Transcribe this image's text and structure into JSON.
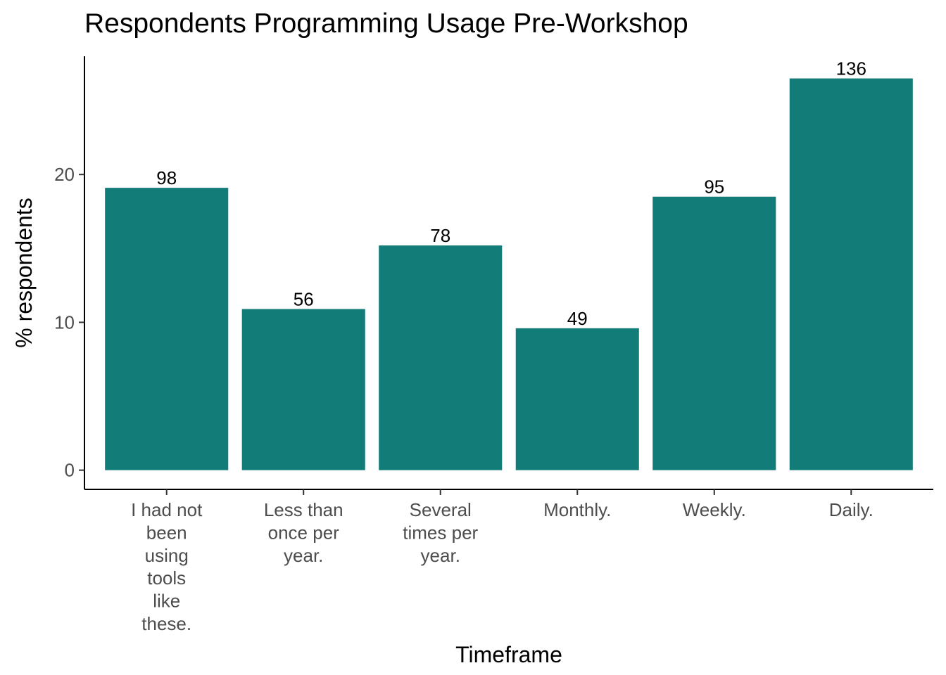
{
  "chart_data": {
    "type": "bar",
    "title": "Respondents Programming Usage Pre-Workshop",
    "xlabel": "Timeframe",
    "ylabel": "% respondents",
    "categories": [
      [
        "I had not",
        "been",
        "using",
        "tools",
        "like",
        "these."
      ],
      [
        "Less than",
        "once per",
        "year."
      ],
      [
        "Several",
        "times per",
        "year."
      ],
      [
        "Monthly."
      ],
      [
        "Weekly."
      ],
      [
        "Daily."
      ]
    ],
    "values": [
      19.1,
      10.9,
      15.2,
      9.6,
      18.5,
      26.5
    ],
    "data_labels": [
      "98",
      "56",
      "78",
      "49",
      "95",
      "136"
    ],
    "yticks": [
      0,
      10,
      20
    ],
    "ylim": [
      -1.3,
      28
    ],
    "grid": false,
    "legend": "none",
    "bar_color": "#127C79"
  }
}
